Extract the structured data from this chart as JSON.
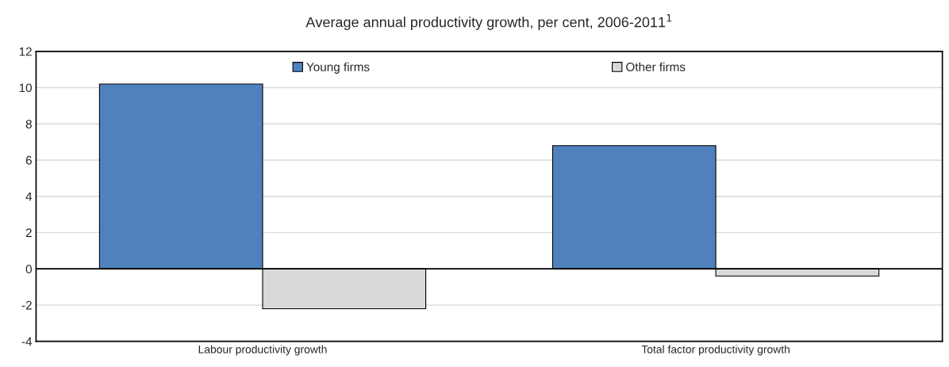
{
  "chart_data": {
    "type": "bar",
    "title": "Average annual productivity growth, per cent, 2006-2011$^{1}$",
    "categories": [
      "Labour productivity growth",
      "Total factor productivity growth"
    ],
    "series": [
      {
        "name": "Young firms",
        "color": "#4f81bd",
        "values": [
          10.2,
          6.8
        ]
      },
      {
        "name": "Other firms",
        "color": "#d9d9d9",
        "values": [
          -2.2,
          -0.4
        ]
      }
    ],
    "ylim": [
      -4,
      12
    ],
    "yticks": [
      -4,
      -2,
      0,
      2,
      4,
      6,
      8,
      10,
      12
    ],
    "grid": "y",
    "legend": "top"
  }
}
